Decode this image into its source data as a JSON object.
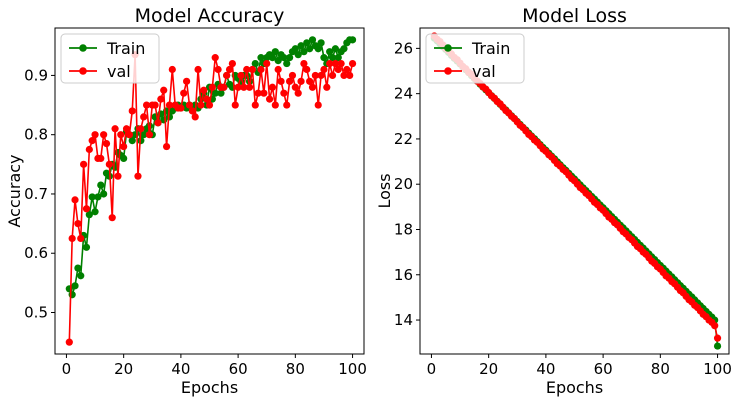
{
  "chart_data": [
    {
      "type": "line",
      "title": "Model Accuracy",
      "xlabel": "Epochs",
      "ylabel": "Accuracy",
      "xlim": [
        -4,
        104
      ],
      "ylim": [
        0.43,
        0.98
      ],
      "xticks": [
        0,
        20,
        40,
        60,
        80,
        100
      ],
      "yticks": [
        0.5,
        0.6,
        0.7,
        0.8,
        0.9
      ],
      "legend": "upper-left",
      "x": [
        1,
        2,
        3,
        4,
        5,
        6,
        7,
        8,
        9,
        10,
        11,
        12,
        13,
        14,
        15,
        16,
        17,
        18,
        19,
        20,
        21,
        22,
        23,
        24,
        25,
        26,
        27,
        28,
        29,
        30,
        31,
        32,
        33,
        34,
        35,
        36,
        37,
        38,
        39,
        40,
        41,
        42,
        43,
        44,
        45,
        46,
        47,
        48,
        49,
        50,
        51,
        52,
        53,
        54,
        55,
        56,
        57,
        58,
        59,
        60,
        61,
        62,
        63,
        64,
        65,
        66,
        67,
        68,
        69,
        70,
        71,
        72,
        73,
        74,
        75,
        76,
        77,
        78,
        79,
        80,
        81,
        82,
        83,
        84,
        85,
        86,
        87,
        88,
        89,
        90,
        91,
        92,
        93,
        94,
        95,
        96,
        97,
        98,
        99,
        100
      ],
      "series": [
        {
          "name": "Train",
          "color": "#008000",
          "values": [
            0.54,
            0.53,
            0.545,
            0.575,
            0.562,
            0.63,
            0.61,
            0.665,
            0.695,
            0.67,
            0.695,
            0.715,
            0.7,
            0.735,
            0.73,
            0.75,
            0.745,
            0.77,
            0.765,
            0.76,
            0.805,
            0.8,
            0.79,
            0.8,
            0.81,
            0.79,
            0.8,
            0.81,
            0.815,
            0.8,
            0.83,
            0.82,
            0.835,
            0.825,
            0.84,
            0.83,
            0.84,
            0.845,
            0.85,
            0.845,
            0.85,
            0.845,
            0.85,
            0.845,
            0.85,
            0.845,
            0.86,
            0.87,
            0.85,
            0.88,
            0.86,
            0.87,
            0.885,
            0.87,
            0.88,
            0.9,
            0.885,
            0.88,
            0.9,
            0.895,
            0.89,
            0.9,
            0.9,
            0.89,
            0.91,
            0.92,
            0.905,
            0.93,
            0.92,
            0.93,
            0.935,
            0.93,
            0.94,
            0.925,
            0.935,
            0.93,
            0.92,
            0.93,
            0.94,
            0.945,
            0.935,
            0.95,
            0.94,
            0.955,
            0.945,
            0.96,
            0.95,
            0.945,
            0.955,
            0.93,
            0.92,
            0.94,
            0.93,
            0.945,
            0.93,
            0.94,
            0.945,
            0.955,
            0.96,
            0.96
          ]
        },
        {
          "name": "val",
          "color": "#ff0000",
          "values": [
            0.45,
            0.625,
            0.69,
            0.65,
            0.625,
            0.75,
            0.675,
            0.775,
            0.79,
            0.8,
            0.76,
            0.76,
            0.8,
            0.785,
            0.75,
            0.66,
            0.81,
            0.73,
            0.8,
            0.78,
            0.81,
            0.8,
            0.84,
            0.935,
            0.73,
            0.81,
            0.83,
            0.85,
            0.8,
            0.85,
            0.85,
            0.82,
            0.86,
            0.875,
            0.78,
            0.85,
            0.91,
            0.85,
            0.845,
            0.845,
            0.87,
            0.89,
            0.85,
            0.84,
            0.83,
            0.91,
            0.85,
            0.875,
            0.86,
            0.85,
            0.88,
            0.93,
            0.91,
            0.88,
            0.88,
            0.9,
            0.91,
            0.92,
            0.85,
            0.88,
            0.9,
            0.88,
            0.91,
            0.88,
            0.91,
            0.85,
            0.87,
            0.91,
            0.87,
            0.92,
            0.86,
            0.88,
            0.85,
            0.91,
            0.89,
            0.87,
            0.85,
            0.89,
            0.9,
            0.88,
            0.87,
            0.89,
            0.92,
            0.91,
            0.89,
            0.88,
            0.9,
            0.85,
            0.9,
            0.91,
            0.88,
            0.92,
            0.9,
            0.92,
            0.91,
            0.92,
            0.9,
            0.91,
            0.9,
            0.92
          ]
        }
      ]
    },
    {
      "type": "line",
      "title": "Model Loss",
      "xlabel": "Epochs",
      "ylabel": "Loss",
      "xlim": [
        -4,
        104
      ],
      "ylim": [
        12.5,
        26.9
      ],
      "xticks": [
        0,
        20,
        40,
        60,
        80,
        100
      ],
      "yticks": [
        14,
        16,
        18,
        20,
        22,
        24,
        26
      ],
      "legend": "upper-left",
      "x": [
        1,
        2,
        3,
        4,
        5,
        6,
        7,
        8,
        9,
        10,
        11,
        12,
        13,
        14,
        15,
        16,
        17,
        18,
        19,
        20,
        21,
        22,
        23,
        24,
        25,
        26,
        27,
        28,
        29,
        30,
        31,
        32,
        33,
        34,
        35,
        36,
        37,
        38,
        39,
        40,
        41,
        42,
        43,
        44,
        45,
        46,
        47,
        48,
        49,
        50,
        51,
        52,
        53,
        54,
        55,
        56,
        57,
        58,
        59,
        60,
        61,
        62,
        63,
        64,
        65,
        66,
        67,
        68,
        69,
        70,
        71,
        72,
        73,
        74,
        75,
        76,
        77,
        78,
        79,
        80,
        81,
        82,
        83,
        84,
        85,
        86,
        87,
        88,
        89,
        90,
        91,
        92,
        93,
        94,
        95,
        96,
        97,
        98,
        99,
        100
      ],
      "series": [
        {
          "name": "Train",
          "color": "#008000",
          "values": [
            26.45,
            26.33,
            26.2,
            26.07,
            25.95,
            25.82,
            25.69,
            25.56,
            25.44,
            25.31,
            25.18,
            25.06,
            24.93,
            24.8,
            24.67,
            24.55,
            24.42,
            24.29,
            24.17,
            24.04,
            23.91,
            23.79,
            23.66,
            23.53,
            23.4,
            23.28,
            23.15,
            23.02,
            22.9,
            22.77,
            22.64,
            22.51,
            22.39,
            22.26,
            22.13,
            22.01,
            21.88,
            21.75,
            21.62,
            21.5,
            21.37,
            21.24,
            21.12,
            20.99,
            20.86,
            20.73,
            20.61,
            20.48,
            20.35,
            20.23,
            20.1,
            19.97,
            19.84,
            19.72,
            19.59,
            19.46,
            19.34,
            19.21,
            19.08,
            18.96,
            18.83,
            18.7,
            18.57,
            18.45,
            18.32,
            18.19,
            18.07,
            17.94,
            17.81,
            17.68,
            17.56,
            17.43,
            17.3,
            17.18,
            17.05,
            16.92,
            16.79,
            16.67,
            16.54,
            16.41,
            16.29,
            16.16,
            16.03,
            15.91,
            15.78,
            15.65,
            15.52,
            15.4,
            15.27,
            15.14,
            15.02,
            14.89,
            14.76,
            14.63,
            14.51,
            14.38,
            14.25,
            14.13,
            14.0,
            12.85
          ]
        },
        {
          "name": "val",
          "color": "#ff0000",
          "values": [
            26.55,
            26.4,
            26.3,
            26.15,
            26.0,
            25.9,
            25.75,
            25.6,
            25.5,
            25.35,
            25.2,
            25.1,
            24.95,
            24.85,
            24.7,
            24.55,
            24.45,
            24.3,
            24.2,
            24.05,
            23.9,
            23.8,
            23.65,
            23.55,
            23.4,
            23.25,
            23.15,
            23.0,
            22.9,
            22.75,
            22.6,
            22.5,
            22.35,
            22.2,
            22.1,
            21.95,
            21.85,
            21.7,
            21.55,
            21.45,
            21.3,
            21.2,
            21.05,
            20.9,
            20.8,
            20.65,
            20.55,
            20.4,
            20.25,
            20.15,
            20.0,
            19.85,
            19.75,
            19.6,
            19.5,
            19.35,
            19.2,
            19.1,
            18.95,
            18.85,
            18.7,
            18.55,
            18.45,
            18.3,
            18.2,
            18.05,
            17.9,
            17.8,
            17.65,
            17.55,
            17.4,
            17.25,
            17.15,
            17.0,
            16.9,
            16.75,
            16.6,
            16.5,
            16.35,
            16.25,
            16.1,
            15.95,
            15.85,
            15.7,
            15.6,
            15.45,
            15.3,
            15.2,
            15.05,
            14.9,
            14.8,
            14.65,
            14.55,
            14.4,
            14.25,
            14.15,
            14.0,
            13.9,
            13.75,
            13.2
          ]
        }
      ]
    }
  ]
}
